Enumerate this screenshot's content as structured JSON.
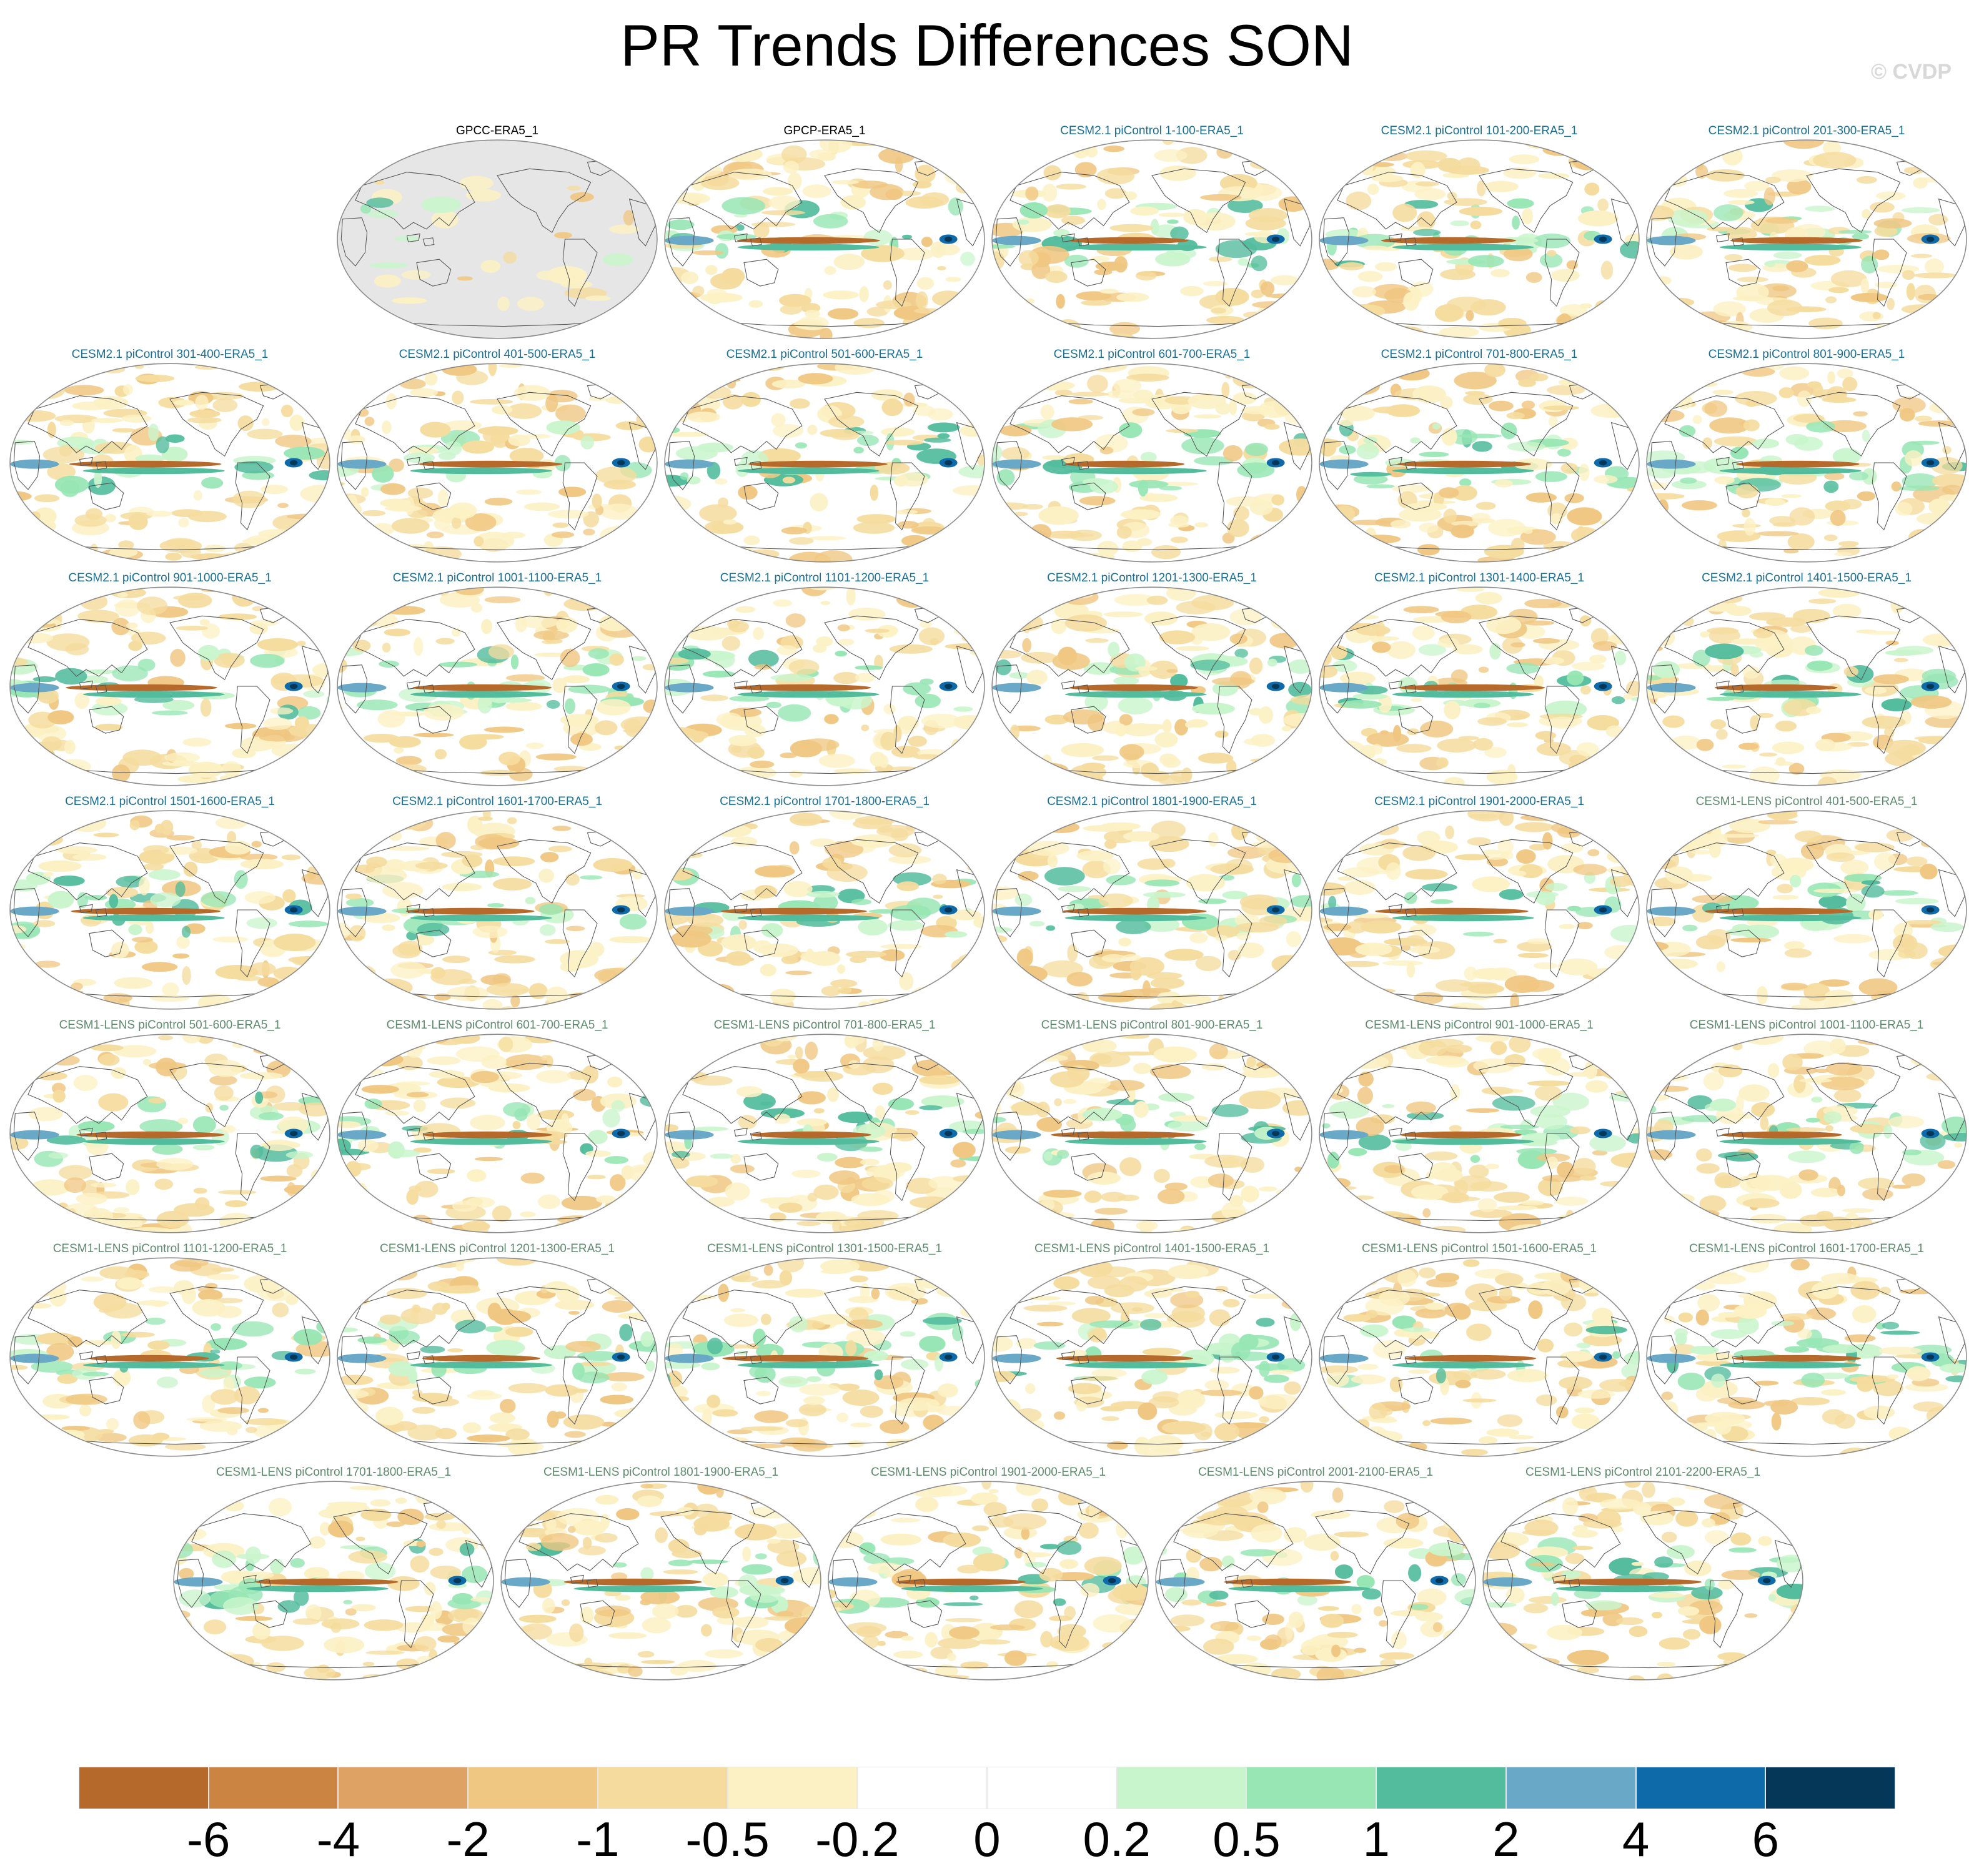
{
  "title": "PR Trends Differences SON",
  "watermark": "© CVDP",
  "colors": {
    "obs_title": "#000000",
    "cesm2_title": "#1a6e91",
    "cesm1_title": "#5e8a6e",
    "land_mask": "#e6e6e6",
    "coast": "#555555"
  },
  "colorbar": {
    "colors": [
      "#b5692a",
      "#cc8442",
      "#dea264",
      "#f0c782",
      "#f5dc9e",
      "#fcf1c4",
      "#ffffff",
      "#ffffff",
      "#c9f5cc",
      "#97e6b4",
      "#52bc9c",
      "#6aa8c8",
      "#0e6aa8",
      "#053858"
    ],
    "labels": [
      "-6",
      "-4",
      "-2",
      "-1",
      "-0.5",
      "-0.2",
      "0",
      "0.2",
      "0.5",
      "1",
      "2",
      "4",
      "6"
    ]
  },
  "panels": [
    {
      "title": "GPCC-ERA5_1",
      "group": "obs",
      "masked": true
    },
    {
      "title": "GPCP-ERA5_1",
      "group": "obs"
    },
    {
      "title": "CESM2.1 piControl 1-100-ERA5_1",
      "group": "cesm2"
    },
    {
      "title": "CESM2.1 piControl 101-200-ERA5_1",
      "group": "cesm2"
    },
    {
      "title": "CESM2.1 piControl 201-300-ERA5_1",
      "group": "cesm2"
    },
    {
      "title": "CESM2.1 piControl 301-400-ERA5_1",
      "group": "cesm2"
    },
    {
      "title": "CESM2.1 piControl 401-500-ERA5_1",
      "group": "cesm2"
    },
    {
      "title": "CESM2.1 piControl 501-600-ERA5_1",
      "group": "cesm2"
    },
    {
      "title": "CESM2.1 piControl 601-700-ERA5_1",
      "group": "cesm2"
    },
    {
      "title": "CESM2.1 piControl 701-800-ERA5_1",
      "group": "cesm2"
    },
    {
      "title": "CESM2.1 piControl 801-900-ERA5_1",
      "group": "cesm2"
    },
    {
      "title": "CESM2.1 piControl 901-1000-ERA5_1",
      "group": "cesm2"
    },
    {
      "title": "CESM2.1 piControl 1001-1100-ERA5_1",
      "group": "cesm2"
    },
    {
      "title": "CESM2.1 piControl 1101-1200-ERA5_1",
      "group": "cesm2"
    },
    {
      "title": "CESM2.1 piControl 1201-1300-ERA5_1",
      "group": "cesm2"
    },
    {
      "title": "CESM2.1 piControl 1301-1400-ERA5_1",
      "group": "cesm2"
    },
    {
      "title": "CESM2.1 piControl 1401-1500-ERA5_1",
      "group": "cesm2"
    },
    {
      "title": "CESM2.1 piControl 1501-1600-ERA5_1",
      "group": "cesm2"
    },
    {
      "title": "CESM2.1 piControl 1601-1700-ERA5_1",
      "group": "cesm2"
    },
    {
      "title": "CESM2.1 piControl 1701-1800-ERA5_1",
      "group": "cesm2"
    },
    {
      "title": "CESM2.1 piControl 1801-1900-ERA5_1",
      "group": "cesm2"
    },
    {
      "title": "CESM2.1 piControl 1901-2000-ERA5_1",
      "group": "cesm2"
    },
    {
      "title": "CESM1-LENS piControl 401-500-ERA5_1",
      "group": "cesm1"
    },
    {
      "title": "CESM1-LENS piControl 501-600-ERA5_1",
      "group": "cesm1"
    },
    {
      "title": "CESM1-LENS piControl 601-700-ERA5_1",
      "group": "cesm1"
    },
    {
      "title": "CESM1-LENS piControl 701-800-ERA5_1",
      "group": "cesm1"
    },
    {
      "title": "CESM1-LENS piControl 801-900-ERA5_1",
      "group": "cesm1"
    },
    {
      "title": "CESM1-LENS piControl 901-1000-ERA5_1",
      "group": "cesm1"
    },
    {
      "title": "CESM1-LENS piControl 1001-1100-ERA5_1",
      "group": "cesm1"
    },
    {
      "title": "CESM1-LENS piControl 1101-1200-ERA5_1",
      "group": "cesm1"
    },
    {
      "title": "CESM1-LENS piControl 1201-1300-ERA5_1",
      "group": "cesm1"
    },
    {
      "title": "CESM1-LENS piControl 1301-1500-ERA5_1",
      "group": "cesm1"
    },
    {
      "title": "CESM1-LENS piControl 1401-1500-ERA5_1",
      "group": "cesm1"
    },
    {
      "title": "CESM1-LENS piControl 1501-1600-ERA5_1",
      "group": "cesm1"
    },
    {
      "title": "CESM1-LENS piControl 1601-1700-ERA5_1",
      "group": "cesm1"
    },
    {
      "title": "CESM1-LENS piControl 1701-1800-ERA5_1",
      "group": "cesm1"
    },
    {
      "title": "CESM1-LENS piControl 1801-1900-ERA5_1",
      "group": "cesm1"
    },
    {
      "title": "CESM1-LENS piControl 1901-2000-ERA5_1",
      "group": "cesm1"
    },
    {
      "title": "CESM1-LENS piControl 2001-2100-ERA5_1",
      "group": "cesm1"
    },
    {
      "title": "CESM1-LENS piControl 2101-2200-ERA5_1",
      "group": "cesm1"
    }
  ]
}
